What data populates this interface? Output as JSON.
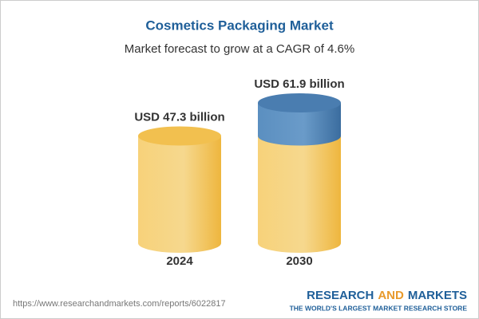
{
  "chart_data": {
    "type": "cylinder",
    "title": "Cosmetics Packaging Market",
    "subtitle": "Market forecast to grow at a CAGR of 4.6%",
    "categories": [
      "2024",
      "2030"
    ],
    "values": [
      47.3,
      61.9
    ],
    "value_labels": [
      "USD 47.3 billion",
      "USD 61.9 billion"
    ],
    "color": "#f2c04f",
    "growth_color": "#4a7db0",
    "source": "https://www.researchandmarkets.com/reports/6022817",
    "brand": {
      "first": "RESEARCH",
      "middle": "AND",
      "last": "MARKETS"
    },
    "tagline": "THE WORLD'S LARGEST MARKET RESEARCH STORE"
  }
}
